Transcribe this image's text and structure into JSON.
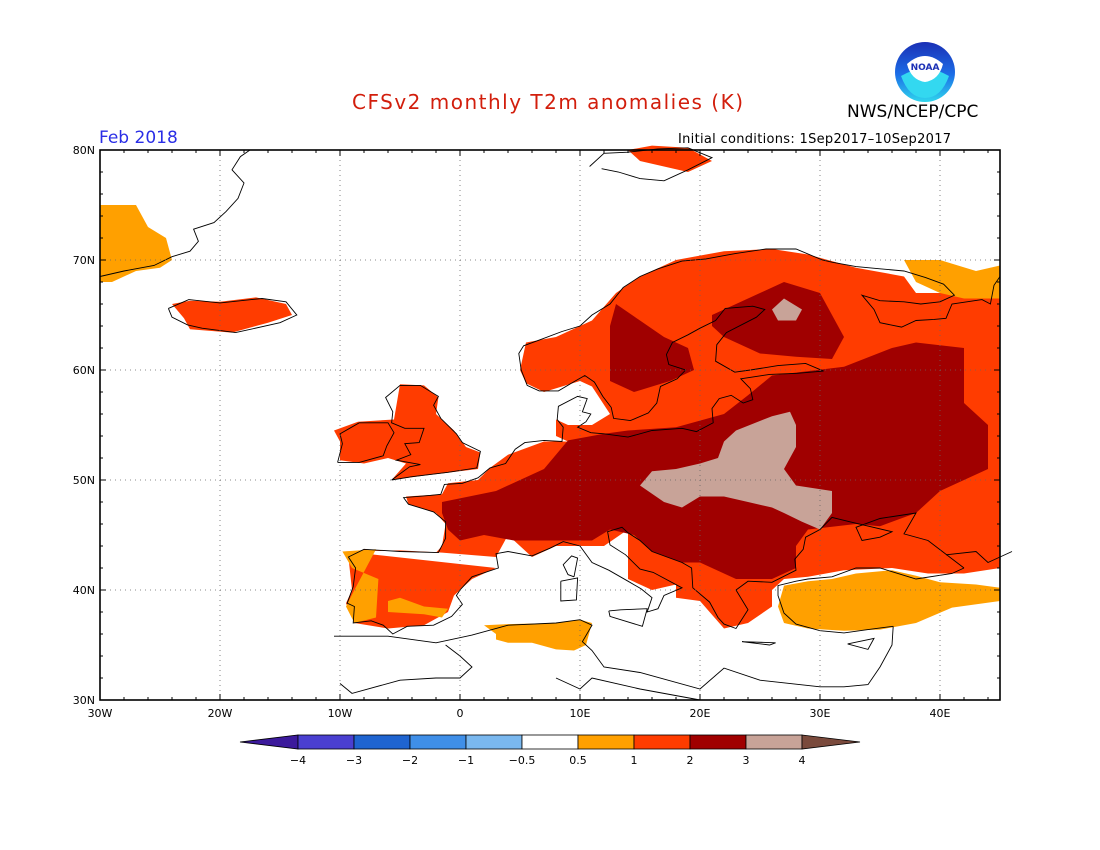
{
  "header": {
    "title": "CFSv2 monthly T2m anomalies (K)",
    "agency": "NWS/NCEP/CPC",
    "logo_text": "NOAA",
    "period": "Feb 2018",
    "initial_conditions": "Initial conditions: 1Sep2017–10Sep2017"
  },
  "map": {
    "lon_range": [
      -30,
      45
    ],
    "lat_range": [
      30,
      80
    ],
    "lat_labels": [
      "30N",
      "40N",
      "50N",
      "60N",
      "70N",
      "80N"
    ],
    "lon_labels": [
      "30W",
      "20W",
      "10W",
      "0",
      "10E",
      "20E",
      "30E",
      "40E"
    ],
    "grid": "dotted"
  },
  "legend": {
    "bins": [
      {
        "color": "#3c1a9c"
      },
      {
        "color": "#4a3fd0"
      },
      {
        "color": "#1f64d0"
      },
      {
        "color": "#3f8fe8"
      },
      {
        "color": "#7ab8ef"
      },
      {
        "color": "#ffffff"
      },
      {
        "color": "#ffa000"
      },
      {
        "color": "#ff3c00"
      },
      {
        "color": "#a00000"
      },
      {
        "color": "#c8a398"
      },
      {
        "color": "#7a4a3c"
      }
    ],
    "tick_labels": [
      "−4",
      "−3",
      "−2",
      "−1",
      "−0.5",
      "0.5",
      "1",
      "2",
      "3",
      "4"
    ]
  },
  "colors": {
    "anom_0p5_1": "#ffa000",
    "anom_1_2": "#ff3c00",
    "anom_2_3": "#a00000",
    "anom_3_4": "#c8a398",
    "title": "#d21e0c",
    "period": "#2a2ee6"
  }
}
